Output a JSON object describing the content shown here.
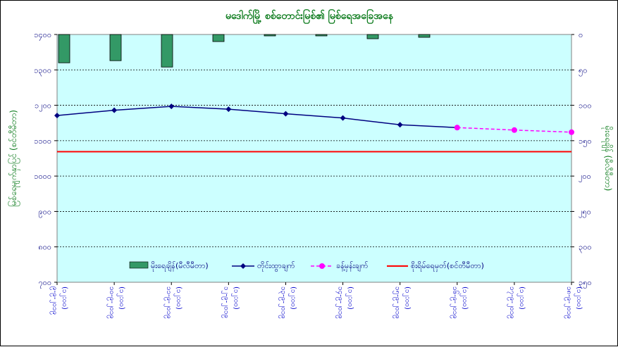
{
  "chart_data": {
    "type": "combo",
    "title": "မဒေါက်မြို့ စစ်တောင်းမြစ်၏ မြစ်ရေအခြေအနေ",
    "ylabel_left": "မြစ်ရေမျက်နှာပြင် (စင်တီမီတာ)",
    "ylabel_right": "မိုးရေချိန် (မီလီမီတာ)",
    "ylim_left": [
      700,
      1400
    ],
    "ylim_right_inverted": [
      0,
      350
    ],
    "left_ticks": [
      "၁၄၀၀",
      "၁၃၀၀",
      "၁၂၀၀",
      "၁၁၀၀",
      "၁၀၀၀",
      "၉၀၀",
      "၈၀၀",
      "၇၀၀"
    ],
    "right_ticks": [
      "၀",
      "၅၀",
      "၁၀၀",
      "၁၅၀",
      "၂၀၀",
      "၂၅၀",
      "၃၀၀",
      "၃၅၀"
    ],
    "categories": [
      [
        "၉-၉-၂၀၁၉",
        "(၁၂:၀၀)"
      ],
      [
        "၁၀-၉-၂၀၁၉",
        "(၁၂:၀၀)"
      ],
      [
        "၁၁-၉-၂၀၁၉",
        "(၁၂:၀၀)"
      ],
      [
        "၁၂-၉-၂၀၁၉",
        "(၁၂:၀၀)"
      ],
      [
        "၁၃-၉-၂၀၁၉",
        "(၁၂:၀၀)"
      ],
      [
        "၁၄-၉-၂၀၁၉",
        "(၁၂:၀၀)"
      ],
      [
        "၁၅-၉-၂၀၁၉",
        "(၁၂:၀၀)"
      ],
      [
        "၁၆-၉-၂၀၁၉",
        "(၁၂:၀၀)"
      ],
      [
        "၁၇-၉-၂၀၁၉",
        "(၁၂:၀၀)"
      ],
      [
        "၁၈-၉-၂၀၁၉",
        "(၁၂:၀၀)"
      ]
    ],
    "rainfall_mm": [
      40,
      37,
      46,
      10,
      2,
      2,
      6,
      4,
      null,
      null
    ],
    "observed_cm": [
      1171,
      1186,
      1197,
      1189,
      1176,
      1164,
      1145,
      1137,
      null,
      null
    ],
    "forecast_cm": [
      null,
      null,
      null,
      null,
      null,
      null,
      null,
      1137,
      1130,
      1124
    ],
    "danger_level_cm": 1069,
    "legend": {
      "rain": "မိုးရေချိန်(မီလီမီတာ)",
      "observed": "တိုင်းထွာချက်",
      "forecast": "ခန့်မှန်းချက်",
      "danger": "စိုးရိမ်ရေမှတ်(စင်တီမီတာ)"
    },
    "colors": {
      "background": "#ccffff",
      "rain_bar": "#339966",
      "observed": "#000080",
      "forecast": "#ff00ff",
      "danger": "#ff0000",
      "title": "#0a7a1a"
    },
    "grid": true,
    "legend_position": "bottom-center"
  }
}
